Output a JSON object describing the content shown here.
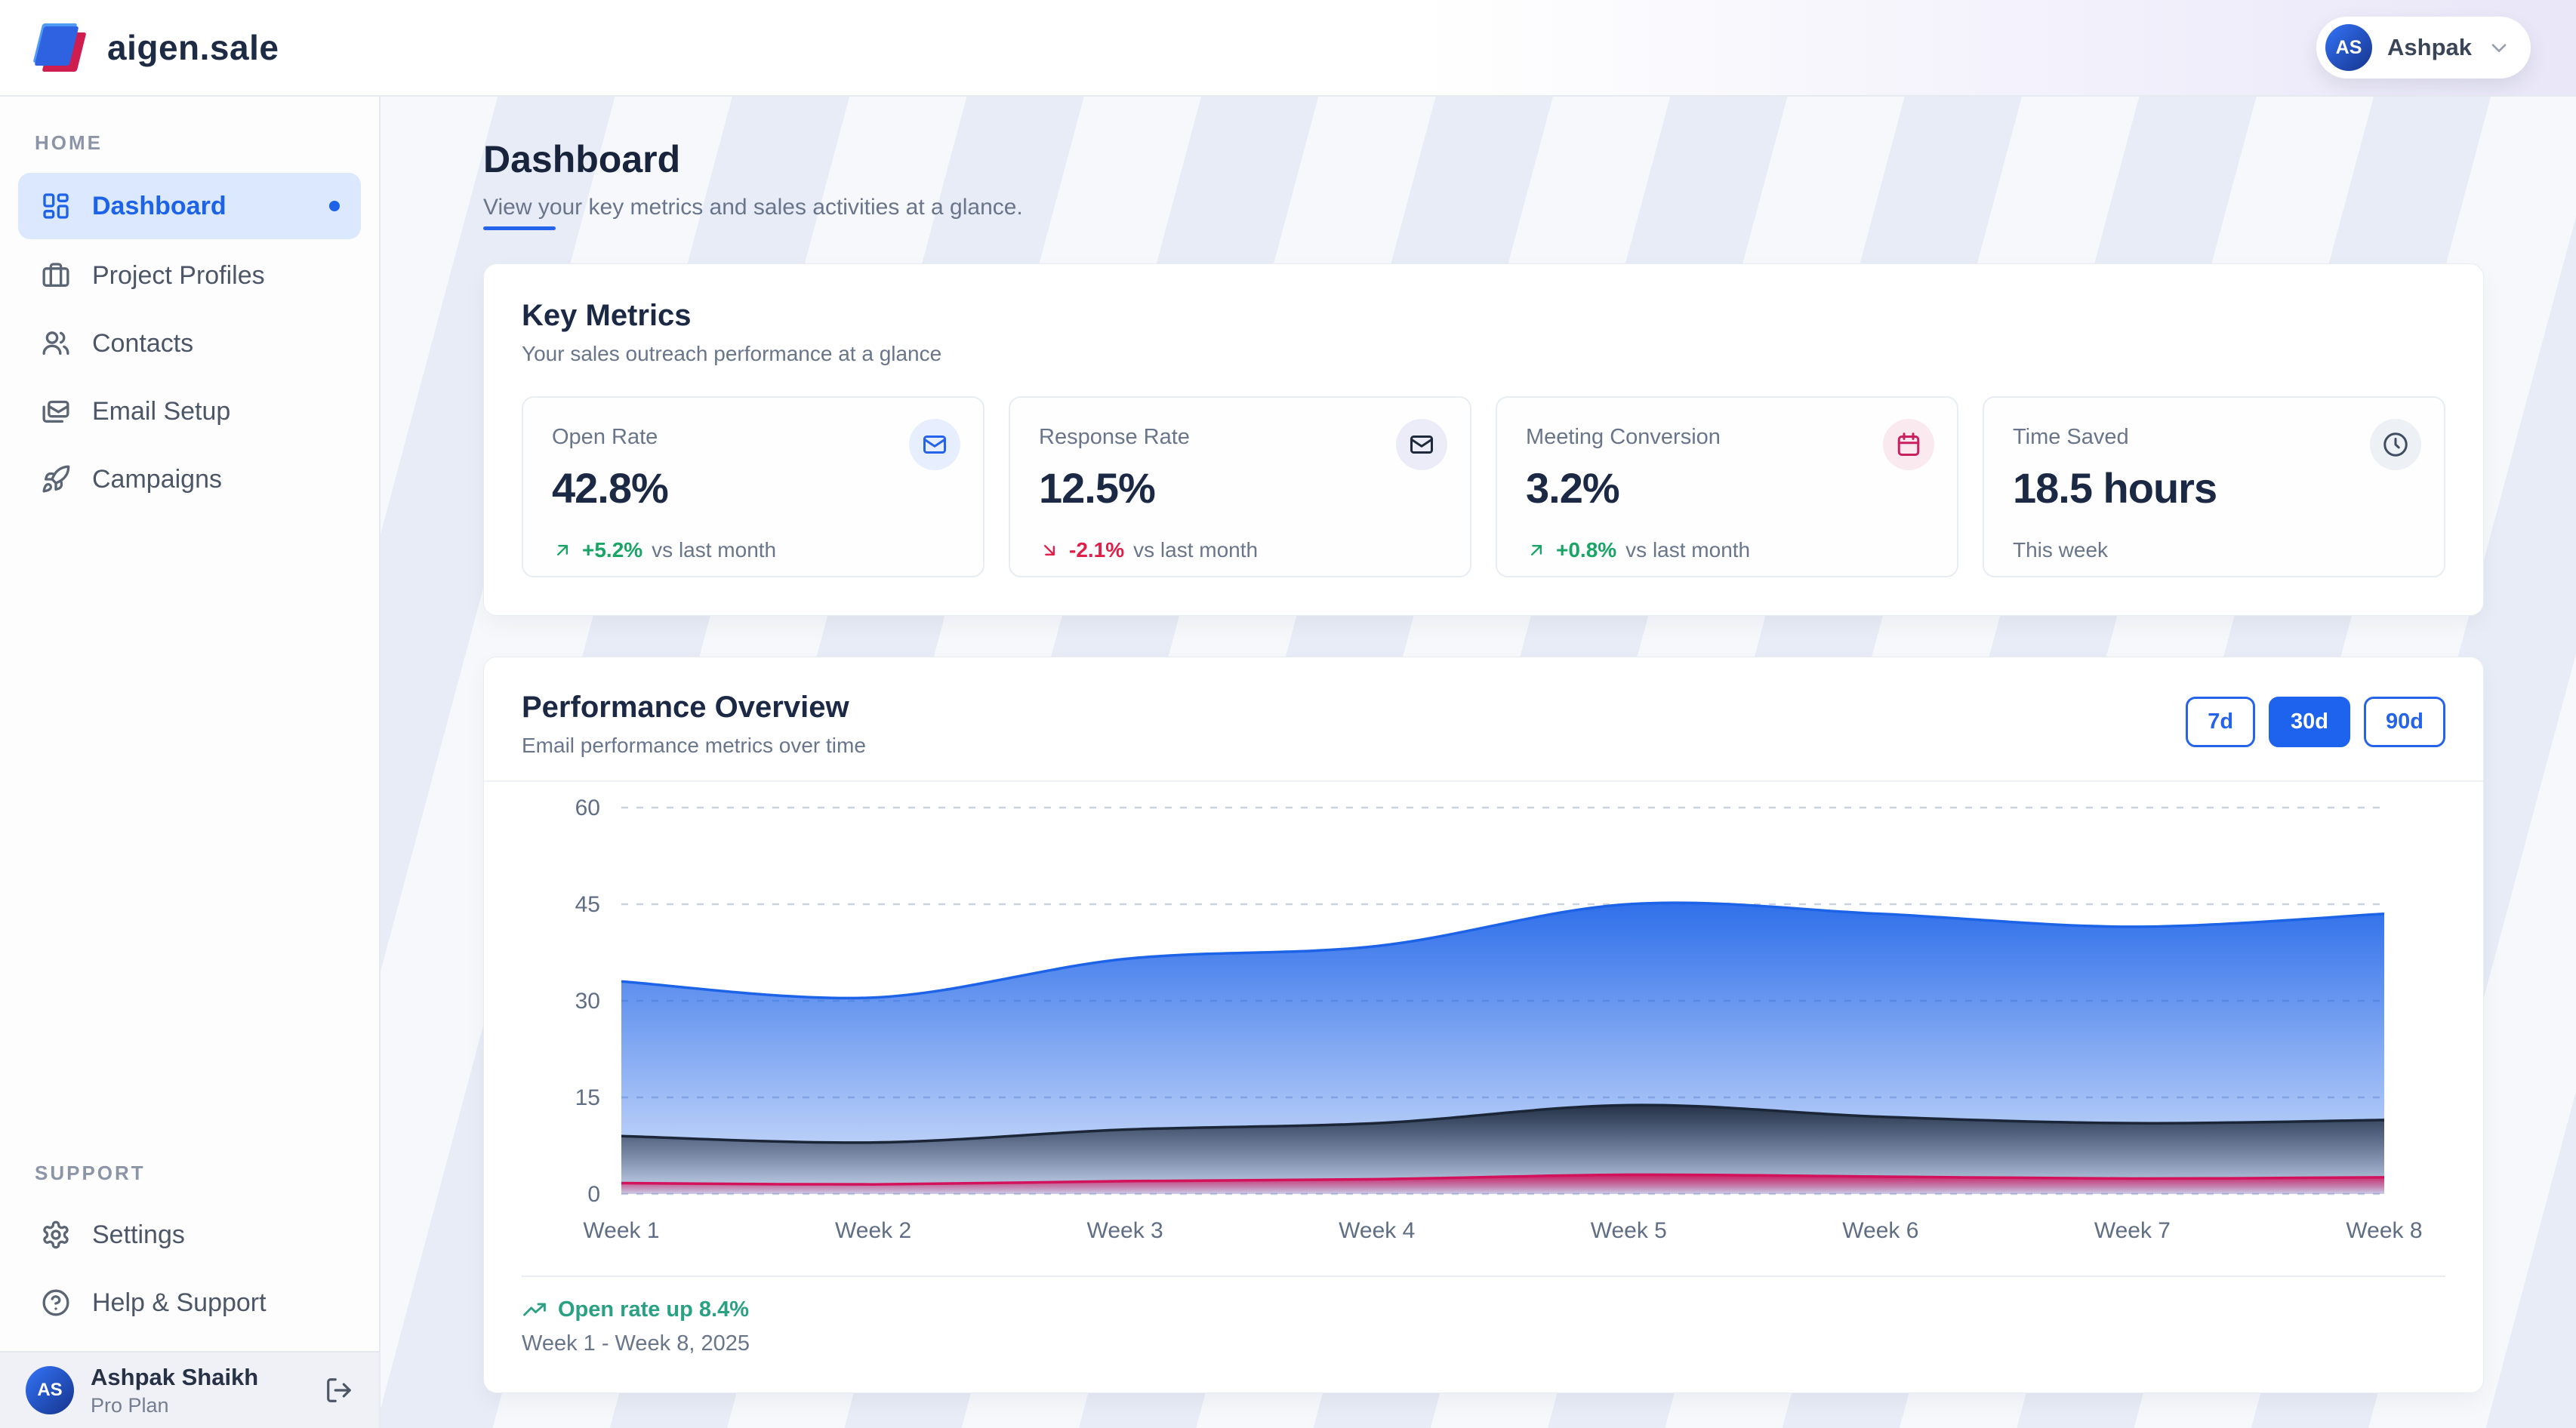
{
  "brand": {
    "name": "aigen.sale"
  },
  "user": {
    "initials": "AS",
    "short_name": "Ashpak",
    "full_name": "Ashpak Shaikh",
    "plan": "Pro Plan"
  },
  "sidebar": {
    "sections": [
      {
        "label": "HOME",
        "items": [
          {
            "label": "Dashboard",
            "icon": "dashboard-grid-icon",
            "active": true
          },
          {
            "label": "Project Profiles",
            "icon": "briefcase-icon",
            "active": false
          },
          {
            "label": "Contacts",
            "icon": "users-icon",
            "active": false
          },
          {
            "label": "Email Setup",
            "icon": "mails-icon",
            "active": false
          },
          {
            "label": "Campaigns",
            "icon": "rocket-icon",
            "active": false
          }
        ]
      },
      {
        "label": "SUPPORT",
        "items": [
          {
            "label": "Settings",
            "icon": "gear-icon",
            "active": false
          },
          {
            "label": "Help & Support",
            "icon": "help-circle-icon",
            "active": false
          }
        ]
      }
    ]
  },
  "page": {
    "title": "Dashboard",
    "subtitle": "View your key metrics and sales activities at a glance."
  },
  "key_metrics": {
    "title": "Key Metrics",
    "subtitle": "Your sales outreach performance at a glance",
    "cards": [
      {
        "label": "Open Rate",
        "value": "42.8%",
        "trend": "+5.2%",
        "trend_dir": "up",
        "trend_note": "vs last month",
        "icon": "mail-icon",
        "icon_color": "#2563eb",
        "icon_bg": "#e7effe"
      },
      {
        "label": "Response Rate",
        "value": "12.5%",
        "trend": "-2.1%",
        "trend_dir": "down",
        "trend_note": "vs last month",
        "icon": "mail-icon",
        "icon_color": "#1e293b",
        "icon_bg": "#ececf8"
      },
      {
        "label": "Meeting Conversion",
        "value": "3.2%",
        "trend": "+0.8%",
        "trend_dir": "up",
        "trend_note": "vs last month",
        "icon": "calendar-icon",
        "icon_color": "#c9205f",
        "icon_bg": "#fbe9f0"
      },
      {
        "label": "Time Saved",
        "value": "18.5 hours",
        "trend": null,
        "trend_dir": null,
        "trend_note": "This week",
        "icon": "clock-icon",
        "icon_color": "#3f4c61",
        "icon_bg": "#edf1f6"
      }
    ]
  },
  "performance": {
    "title": "Performance Overview",
    "subtitle": "Email performance metrics over time",
    "range_buttons": [
      {
        "label": "7d",
        "active": false
      },
      {
        "label": "30d",
        "active": true
      },
      {
        "label": "90d",
        "active": false
      }
    ],
    "footer_highlight": "Open rate up 8.4%",
    "footer_range": "Week 1 - Week 8, 2025"
  },
  "chart_data": {
    "type": "area",
    "x": [
      "Week 1",
      "Week 2",
      "Week 3",
      "Week 4",
      "Week 5",
      "Week 6",
      "Week 7",
      "Week 8"
    ],
    "series": [
      {
        "name": "Open Rate",
        "color": "#1d63e8",
        "values": [
          33,
          30.5,
          36.5,
          38.5,
          45,
          43.5,
          41.5,
          43.5
        ]
      },
      {
        "name": "Response Rate",
        "color": "#1b2638",
        "values": [
          9,
          8,
          10,
          11,
          13.8,
          12,
          11,
          11.5
        ]
      },
      {
        "name": "Meeting Conversion",
        "color": "#d3125c",
        "values": [
          1.7,
          1.5,
          2,
          2.3,
          3,
          2.7,
          2.4,
          2.6
        ]
      }
    ],
    "ylim": [
      0,
      60
    ],
    "yticks": [
      0,
      15,
      30,
      45,
      60
    ],
    "grid": "horizontal-dashed",
    "legend": "none",
    "title": "Performance Overview"
  },
  "colors": {
    "accent": "#1d63ed",
    "trend_up": "#18a566",
    "trend_down": "#e11d48",
    "footer_green": "#2aa183",
    "grid_line": "#c9d2e0",
    "axis_text": "#5f6e84"
  }
}
